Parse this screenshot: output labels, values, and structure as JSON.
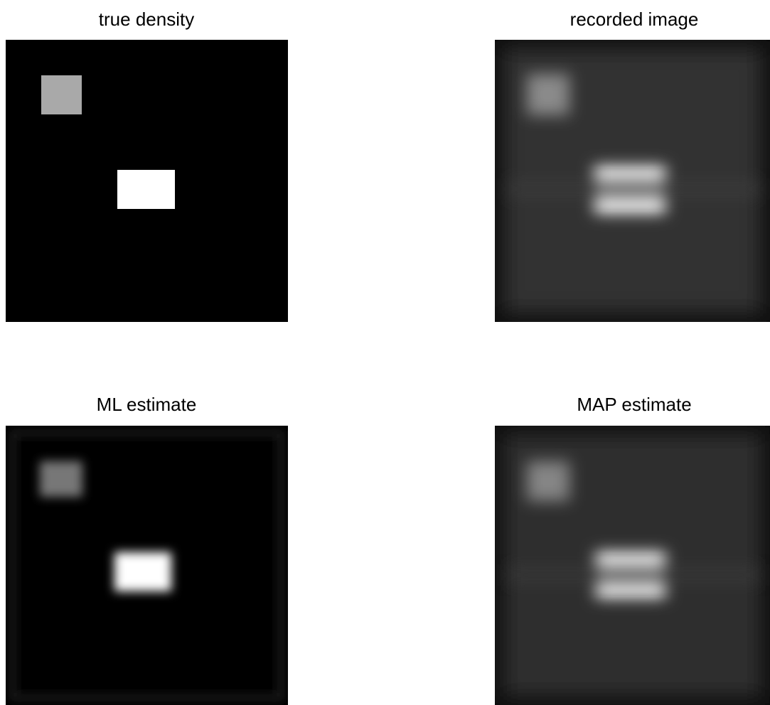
{
  "panels": [
    {
      "title": "true density"
    },
    {
      "title": "recorded image"
    },
    {
      "title": "ML estimate"
    },
    {
      "title": "MAP estimate"
    }
  ]
}
